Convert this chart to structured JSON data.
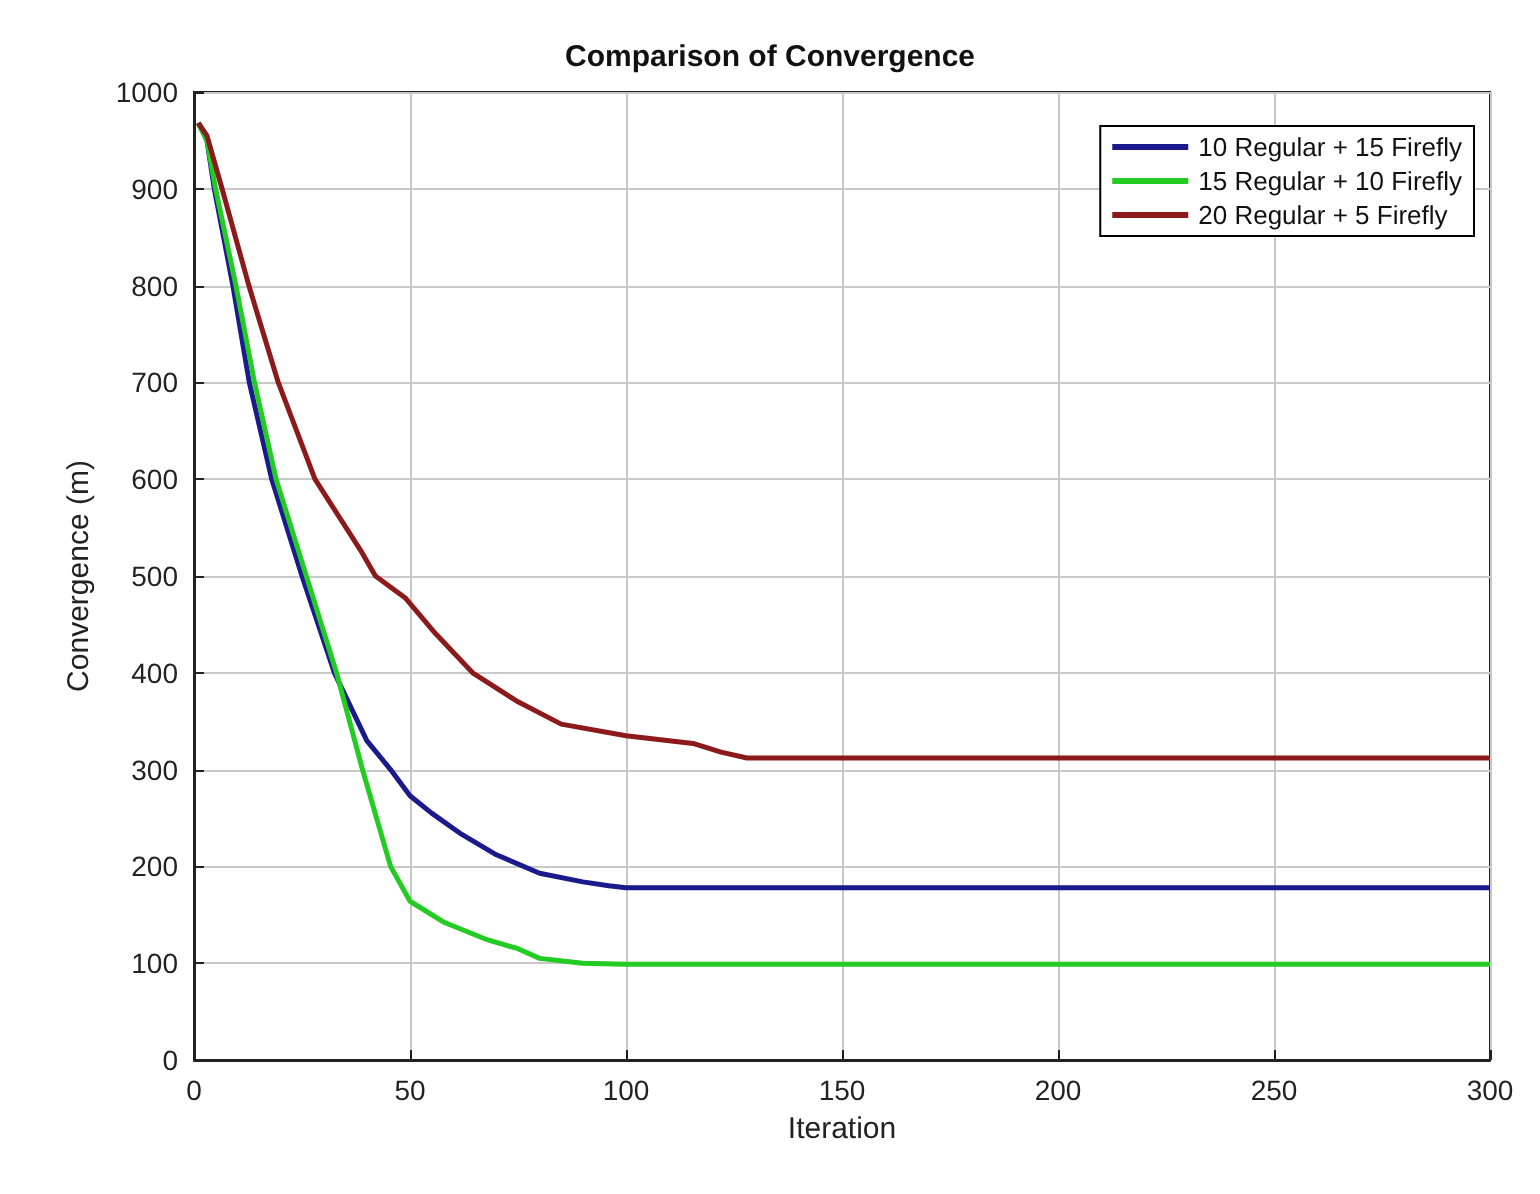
{
  "chart_data": {
    "type": "line",
    "title": "Comparison of Convergence",
    "xlabel": "Iteration",
    "ylabel": "Convergence (m)",
    "xlim": [
      0,
      300
    ],
    "xticks": [
      0,
      50,
      100,
      150,
      200,
      250,
      300
    ],
    "ylim": [
      0,
      1000
    ],
    "yticks": [
      0,
      100,
      200,
      300,
      400,
      500,
      600,
      700,
      800,
      900,
      1000
    ],
    "grid": true,
    "legend": "top right",
    "series": [
      {
        "name": "10 Regular + 15 Firefly",
        "color": "#1a1a8c",
        "x": [
          1,
          3,
          4.7,
          9,
          12.8,
          18,
          25,
          32.5,
          40,
          45.5,
          50,
          55,
          62,
          70,
          80,
          90,
          96,
          100,
          150,
          200,
          250,
          300
        ],
        "values": [
          968,
          950,
          900,
          800,
          700,
          600,
          500,
          400,
          330,
          300,
          273,
          255,
          233,
          212,
          193,
          184,
          180,
          178,
          178,
          178,
          178,
          178
        ]
      },
      {
        "name": "15 Regular + 10 Firefly",
        "color": "#22cc22",
        "x": [
          1,
          3,
          5,
          9.7,
          14,
          19,
          26,
          29.5,
          33,
          39,
          45.5,
          50,
          58,
          68,
          75,
          80,
          90,
          100,
          150,
          200,
          250,
          300
        ],
        "values": [
          968,
          950,
          900,
          800,
          700,
          600,
          500,
          450,
          400,
          300,
          200,
          164,
          142,
          124,
          115,
          105,
          100,
          99,
          99,
          99,
          99,
          99
        ]
      },
      {
        "name": "20 Regular + 5 Firefly",
        "color": "#8c1a1a",
        "x": [
          1,
          3,
          6.5,
          12.7,
          19.5,
          28,
          38.5,
          42,
          49,
          56,
          64.5,
          75,
          85,
          100,
          115.5,
          122,
          128,
          150,
          200,
          250,
          300
        ],
        "values": [
          968,
          955,
          900,
          800,
          700,
          600,
          527,
          500,
          477,
          440,
          400,
          370,
          347,
          335,
          327,
          318,
          312,
          312,
          312,
          312,
          312
        ]
      }
    ]
  }
}
